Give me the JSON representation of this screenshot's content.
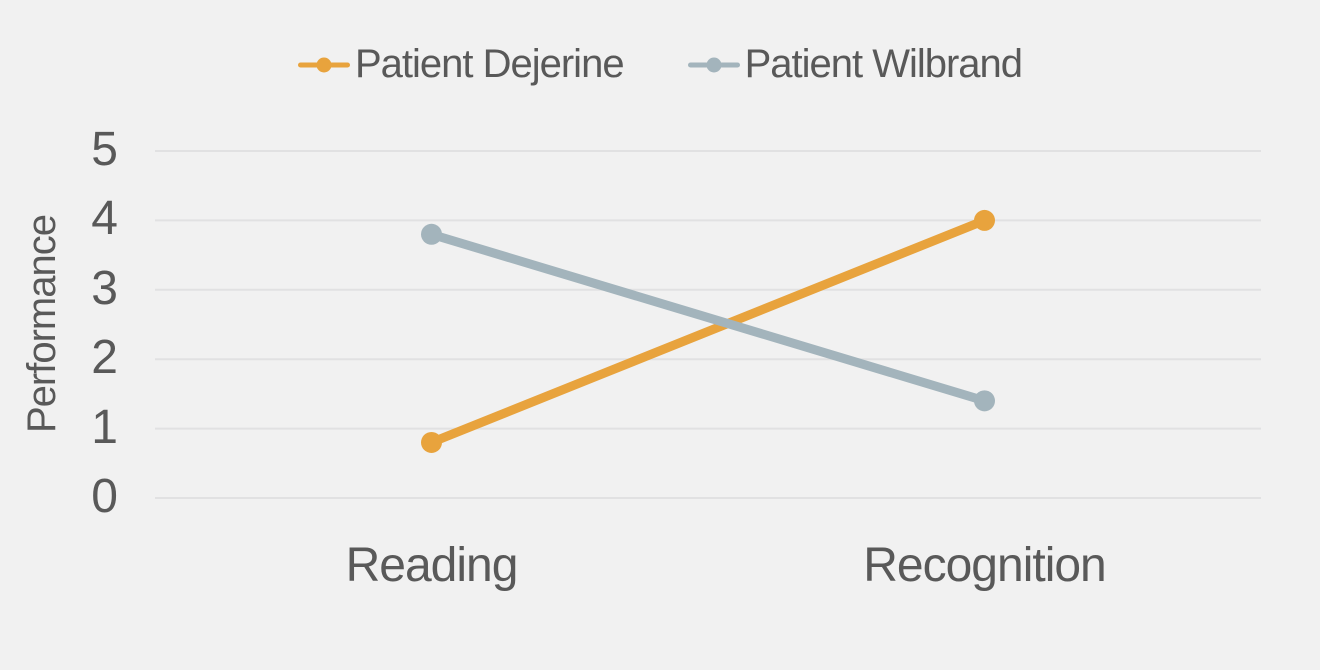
{
  "page": {
    "background_color": "#F1F1F1",
    "text_color": "#595959",
    "gridline_color": "#E1E1E2"
  },
  "legend": {
    "items": [
      {
        "label": "Patient Dejerine",
        "color": "#E8A33D"
      },
      {
        "label": "Patient Wilbrand",
        "color": "#A3B4BC"
      }
    ]
  },
  "chart_data": {
    "type": "line",
    "categories": [
      "Reading",
      "Recognition"
    ],
    "series": [
      {
        "name": "Patient Dejerine",
        "color": "#E8A33D",
        "values": [
          0.8,
          4.0
        ]
      },
      {
        "name": "Patient Wilbrand",
        "color": "#A3B4BC",
        "values": [
          3.8,
          1.4
        ]
      }
    ],
    "title": "",
    "xlabel": "",
    "ylabel": "Performance",
    "ylim": [
      0,
      5
    ],
    "yticks": [
      0,
      1,
      2,
      3,
      4,
      5
    ],
    "grid": "horizontal-only",
    "legend_position": "top",
    "marker": "circle-endpoints"
  }
}
